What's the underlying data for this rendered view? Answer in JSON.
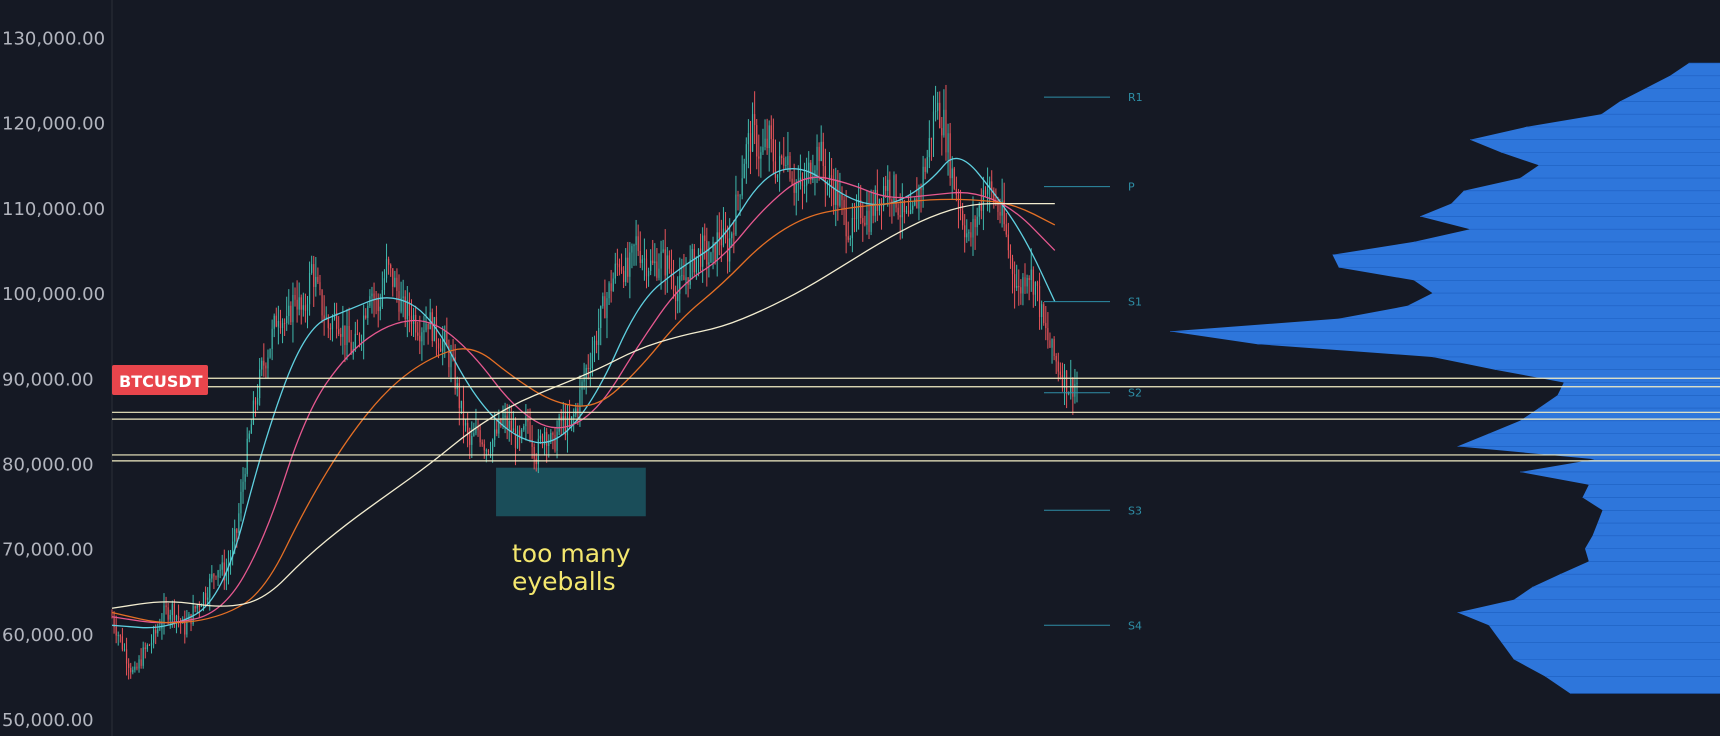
{
  "symbol": "BTCUSDT",
  "colors": {
    "background": "#151924",
    "axis_text": "#b2b5be",
    "up_candle": "#3fb8ac",
    "down_candle": "#e8545a",
    "ma_fast": "#5fd0e0",
    "ma_mid": "#e6588f",
    "ma_slow": "#e46f25",
    "ma_long": "#f3edd0",
    "level_line": "#f3eec4",
    "pivot": "#2e8ea6",
    "volume_profile": "#2f7be6",
    "zone": "#1c5f6b",
    "symbol_badge": "#e8454c",
    "annotation": "#f4e76e"
  },
  "chart_data": {
    "type": "candlestick",
    "y_axis": {
      "range": [
        50000,
        133000
      ],
      "ticks": [
        {
          "value": 130000,
          "label": "130,000.00"
        },
        {
          "value": 120000,
          "label": "120,000.00"
        },
        {
          "value": 110000,
          "label": "110,000.00"
        },
        {
          "value": 100000,
          "label": "100,000.00"
        },
        {
          "value": 90000,
          "label": "90,000.00"
        },
        {
          "value": 80000,
          "label": "80,000.00"
        },
        {
          "value": 70000,
          "label": "70,000.00"
        },
        {
          "value": 60000,
          "label": "60,000.00"
        },
        {
          "value": 50000,
          "label": "50,000.00"
        }
      ]
    },
    "price_path": [
      [
        0,
        62000
      ],
      [
        8,
        58500
      ],
      [
        16,
        55000
      ],
      [
        22,
        57500
      ],
      [
        30,
        59500
      ],
      [
        38,
        62500
      ],
      [
        44,
        63000
      ],
      [
        52,
        60500
      ],
      [
        60,
        63000
      ],
      [
        68,
        65000
      ],
      [
        76,
        68000
      ],
      [
        82,
        67000
      ],
      [
        90,
        72000
      ],
      [
        96,
        80000
      ],
      [
        102,
        86000
      ],
      [
        108,
        91000
      ],
      [
        114,
        94000
      ],
      [
        120,
        98000
      ],
      [
        126,
        96000
      ],
      [
        132,
        100000
      ],
      [
        138,
        97000
      ],
      [
        144,
        103000
      ],
      [
        150,
        99000
      ],
      [
        156,
        96000
      ],
      [
        162,
        97500
      ],
      [
        168,
        95000
      ],
      [
        174,
        93000
      ],
      [
        180,
        96000
      ],
      [
        186,
        101000
      ],
      [
        192,
        98000
      ],
      [
        198,
        103000
      ],
      [
        204,
        101000
      ],
      [
        210,
        98000
      ],
      [
        216,
        97500
      ],
      [
        222,
        96000
      ],
      [
        228,
        97000
      ],
      [
        234,
        95000
      ],
      [
        240,
        94000
      ],
      [
        246,
        91000
      ],
      [
        252,
        86000
      ],
      [
        258,
        82000
      ],
      [
        264,
        84000
      ],
      [
        270,
        82000
      ],
      [
        276,
        83000
      ],
      [
        282,
        85000
      ],
      [
        288,
        84000
      ],
      [
        294,
        82000
      ],
      [
        300,
        85000
      ],
      [
        306,
        81000
      ],
      [
        312,
        84000
      ],
      [
        318,
        82000
      ],
      [
        324,
        85000
      ],
      [
        330,
        84000
      ],
      [
        336,
        87000
      ],
      [
        342,
        91000
      ],
      [
        348,
        94000
      ],
      [
        354,
        98000
      ],
      [
        360,
        101000
      ],
      [
        366,
        104000
      ],
      [
        372,
        102000
      ],
      [
        378,
        106000
      ],
      [
        384,
        104000
      ],
      [
        390,
        103000
      ],
      [
        396,
        104000
      ],
      [
        402,
        103000
      ],
      [
        408,
        100000
      ],
      [
        414,
        102000
      ],
      [
        420,
        104000
      ],
      [
        426,
        105000
      ],
      [
        432,
        103500
      ],
      [
        438,
        107000
      ],
      [
        444,
        105000
      ],
      [
        450,
        110000
      ],
      [
        456,
        116000
      ],
      [
        462,
        119000
      ],
      [
        468,
        116000
      ],
      [
        474,
        118000
      ],
      [
        480,
        114000
      ],
      [
        486,
        117000
      ],
      [
        492,
        113000
      ],
      [
        498,
        112000
      ],
      [
        504,
        115000
      ],
      [
        510,
        117000
      ],
      [
        516,
        113000
      ],
      [
        522,
        112000
      ],
      [
        528,
        109000
      ],
      [
        534,
        107000
      ],
      [
        540,
        110000
      ],
      [
        546,
        109000
      ],
      [
        552,
        111000
      ],
      [
        558,
        113000
      ],
      [
        564,
        112000
      ],
      [
        570,
        109000
      ],
      [
        576,
        108000
      ],
      [
        582,
        112000
      ],
      [
        588,
        116000
      ],
      [
        594,
        122000
      ],
      [
        600,
        120000
      ],
      [
        606,
        114000
      ],
      [
        612,
        110000
      ],
      [
        618,
        106000
      ],
      [
        624,
        109000
      ],
      [
        630,
        113000
      ],
      [
        636,
        111000
      ],
      [
        642,
        109000
      ],
      [
        648,
        104000
      ],
      [
        654,
        100000
      ],
      [
        660,
        103000
      ],
      [
        666,
        101000
      ],
      [
        672,
        96000
      ],
      [
        678,
        93000
      ],
      [
        684,
        91000
      ],
      [
        690,
        89000
      ],
      [
        696,
        89500
      ]
    ],
    "moving_averages": [
      {
        "key": "fast",
        "points": [
          [
            0,
            61000
          ],
          [
            40,
            60500
          ],
          [
            80,
            64000
          ],
          [
            110,
            83000
          ],
          [
            140,
            96000
          ],
          [
            170,
            98000
          ],
          [
            200,
            100000
          ],
          [
            230,
            97500
          ],
          [
            260,
            88000
          ],
          [
            290,
            83000
          ],
          [
            320,
            82000
          ],
          [
            350,
            88000
          ],
          [
            380,
            99000
          ],
          [
            410,
            103000
          ],
          [
            440,
            106000
          ],
          [
            470,
            114000
          ],
          [
            500,
            115000
          ],
          [
            530,
            111000
          ],
          [
            560,
            110000
          ],
          [
            590,
            113000
          ],
          [
            610,
            117000
          ],
          [
            640,
            111000
          ],
          [
            660,
            106000
          ],
          [
            680,
            99000
          ]
        ]
      },
      {
        "key": "mid",
        "points": [
          [
            0,
            62000
          ],
          [
            40,
            61000
          ],
          [
            80,
            62500
          ],
          [
            110,
            71000
          ],
          [
            140,
            86000
          ],
          [
            170,
            93000
          ],
          [
            200,
            96500
          ],
          [
            230,
            97000
          ],
          [
            260,
            93000
          ],
          [
            290,
            86500
          ],
          [
            320,
            83500
          ],
          [
            350,
            86000
          ],
          [
            380,
            94000
          ],
          [
            410,
            101000
          ],
          [
            440,
            104000
          ],
          [
            470,
            110000
          ],
          [
            500,
            114000
          ],
          [
            530,
            113000
          ],
          [
            560,
            111000
          ],
          [
            590,
            111500
          ],
          [
            620,
            112000
          ],
          [
            650,
            110000
          ],
          [
            680,
            105000
          ]
        ]
      },
      {
        "key": "slow",
        "points": [
          [
            0,
            62500
          ],
          [
            40,
            61000
          ],
          [
            80,
            62000
          ],
          [
            110,
            65000
          ],
          [
            140,
            75000
          ],
          [
            170,
            83000
          ],
          [
            200,
            89000
          ],
          [
            230,
            92500
          ],
          [
            260,
            94000
          ],
          [
            290,
            90000
          ],
          [
            320,
            87000
          ],
          [
            350,
            86500
          ],
          [
            380,
            91000
          ],
          [
            410,
            97000
          ],
          [
            440,
            101000
          ],
          [
            470,
            106000
          ],
          [
            500,
            109000
          ],
          [
            530,
            110000
          ],
          [
            560,
            110500
          ],
          [
            590,
            111000
          ],
          [
            620,
            111000
          ],
          [
            650,
            110500
          ],
          [
            680,
            108000
          ]
        ]
      },
      {
        "key": "long",
        "points": [
          [
            0,
            63000
          ],
          [
            40,
            64000
          ],
          [
            80,
            63000
          ],
          [
            110,
            64000
          ],
          [
            140,
            69000
          ],
          [
            170,
            73000
          ],
          [
            200,
            76500
          ],
          [
            230,
            80000
          ],
          [
            260,
            84000
          ],
          [
            290,
            87000
          ],
          [
            320,
            89000
          ],
          [
            350,
            91000
          ],
          [
            380,
            93500
          ],
          [
            410,
            95000
          ],
          [
            440,
            96000
          ],
          [
            470,
            98000
          ],
          [
            500,
            100500
          ],
          [
            530,
            103500
          ],
          [
            560,
            106500
          ],
          [
            590,
            109000
          ],
          [
            620,
            110500
          ],
          [
            650,
            110500
          ],
          [
            680,
            110500
          ]
        ]
      }
    ],
    "horizontal_levels": [
      90000,
      89000,
      86000,
      85200,
      81000,
      80300
    ],
    "pivots": [
      {
        "label": "R1",
        "value": 123000
      },
      {
        "label": "P",
        "value": 112500
      },
      {
        "label": "S1",
        "value": 99000
      },
      {
        "label": "S2",
        "value": 88300
      },
      {
        "label": "S3",
        "value": 74500
      },
      {
        "label": "S4",
        "value": 61000
      }
    ],
    "zone": {
      "x_start": 277,
      "x_end": 385,
      "y_low": 73800,
      "y_high": 79500
    },
    "annotation": {
      "line1": "too many",
      "line2": "eyeballs"
    },
    "volume_profile": [
      [
        53000,
        120
      ],
      [
        55000,
        140
      ],
      [
        57000,
        165
      ],
      [
        59000,
        175
      ],
      [
        61000,
        185
      ],
      [
        62500,
        210
      ],
      [
        64000,
        165
      ],
      [
        65500,
        150
      ],
      [
        67000,
        128
      ],
      [
        68500,
        105
      ],
      [
        70000,
        108
      ],
      [
        71500,
        102
      ],
      [
        73000,
        98
      ],
      [
        74500,
        94
      ],
      [
        76000,
        110
      ],
      [
        77500,
        105
      ],
      [
        79000,
        160
      ],
      [
        80500,
        100
      ],
      [
        82000,
        210
      ],
      [
        83500,
        185
      ],
      [
        85000,
        160
      ],
      [
        86500,
        145
      ],
      [
        88000,
        130
      ],
      [
        89500,
        125
      ],
      [
        91000,
        180
      ],
      [
        92500,
        230
      ],
      [
        94000,
        370
      ],
      [
        95500,
        440
      ],
      [
        97000,
        305
      ],
      [
        98500,
        250
      ],
      [
        100000,
        230
      ],
      [
        101500,
        245
      ],
      [
        103000,
        305
      ],
      [
        104500,
        310
      ],
      [
        106000,
        245
      ],
      [
        107500,
        200
      ],
      [
        109000,
        240
      ],
      [
        110500,
        215
      ],
      [
        112000,
        205
      ],
      [
        113500,
        160
      ],
      [
        115000,
        145
      ],
      [
        116500,
        175
      ],
      [
        118000,
        200
      ],
      [
        119500,
        155
      ],
      [
        121000,
        95
      ],
      [
        122500,
        80
      ],
      [
        124000,
        60
      ],
      [
        125500,
        40
      ],
      [
        127000,
        25
      ]
    ]
  }
}
